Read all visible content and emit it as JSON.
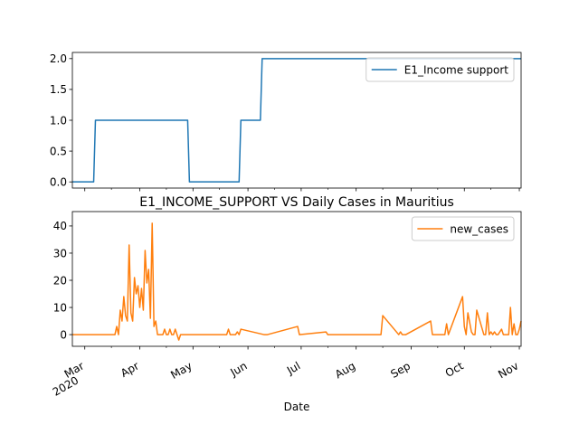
{
  "chart_data": [
    {
      "type": "line",
      "title": "",
      "xlabel": "",
      "ylabel": "",
      "ylim": [
        -0.1,
        2.1
      ],
      "yticks": [
        0.0,
        0.5,
        1.0,
        1.5,
        2.0
      ],
      "ytick_labels": [
        "0.0",
        "0.5",
        "1.0",
        "1.5",
        "2.0"
      ],
      "xlim": [
        "2020-02-23",
        "2020-11-02"
      ],
      "shared_x": true,
      "legend_position": "upper-right",
      "series": [
        {
          "name": "E1_Income support",
          "color": "#1f77b4",
          "x": [
            "2020-02-23",
            "2020-03-06",
            "2020-03-07",
            "2020-04-28",
            "2020-04-29",
            "2020-05-27",
            "2020-05-28",
            "2020-06-08",
            "2020-06-09",
            "2020-11-02"
          ],
          "y": [
            0,
            0,
            1,
            1,
            0,
            0,
            1,
            1,
            2,
            2
          ]
        }
      ]
    },
    {
      "type": "line",
      "title": "E1_INCOME_SUPPORT VS Daily Cases in Mauritius",
      "xlabel": "Date",
      "ylabel": "",
      "ylim": [
        -4.3,
        45.3
      ],
      "yticks": [
        0,
        10,
        20,
        30,
        40
      ],
      "ytick_labels": [
        "0",
        "10",
        "20",
        "30",
        "40"
      ],
      "xlim": [
        "2020-02-23",
        "2020-11-02"
      ],
      "xticks": [
        {
          "date": "2020-03-01",
          "label": "Mar",
          "sublabel": "2020"
        },
        {
          "date": "2020-04-01",
          "label": "Apr",
          "sublabel": ""
        },
        {
          "date": "2020-05-01",
          "label": "May",
          "sublabel": ""
        },
        {
          "date": "2020-06-01",
          "label": "Jun",
          "sublabel": ""
        },
        {
          "date": "2020-07-01",
          "label": "Jul",
          "sublabel": ""
        },
        {
          "date": "2020-08-01",
          "label": "Aug",
          "sublabel": ""
        },
        {
          "date": "2020-09-01",
          "label": "Sep",
          "sublabel": ""
        },
        {
          "date": "2020-10-01",
          "label": "Oct",
          "sublabel": ""
        },
        {
          "date": "2020-11-01",
          "label": "Nov",
          "sublabel": ""
        }
      ],
      "legend_position": "upper-right",
      "series": [
        {
          "name": "new_cases",
          "color": "#ff7f0e",
          "x": [
            "2020-02-23",
            "2020-03-18",
            "2020-03-19",
            "2020-03-20",
            "2020-03-21",
            "2020-03-22",
            "2020-03-23",
            "2020-03-24",
            "2020-03-25",
            "2020-03-26",
            "2020-03-27",
            "2020-03-28",
            "2020-03-29",
            "2020-03-30",
            "2020-03-31",
            "2020-04-01",
            "2020-04-02",
            "2020-04-03",
            "2020-04-04",
            "2020-04-05",
            "2020-04-06",
            "2020-04-07",
            "2020-04-08",
            "2020-04-09",
            "2020-04-10",
            "2020-04-11",
            "2020-04-12",
            "2020-04-13",
            "2020-04-14",
            "2020-04-15",
            "2020-04-16",
            "2020-04-17",
            "2020-04-18",
            "2020-04-19",
            "2020-04-20",
            "2020-04-21",
            "2020-04-22",
            "2020-04-23",
            "2020-04-24",
            "2020-04-25",
            "2020-04-26",
            "2020-04-27",
            "2020-04-28",
            "2020-04-29",
            "2020-05-20",
            "2020-05-21",
            "2020-05-22",
            "2020-05-23",
            "2020-05-24",
            "2020-05-25",
            "2020-05-26",
            "2020-05-27",
            "2020-05-28",
            "2020-06-10",
            "2020-06-11",
            "2020-06-12",
            "2020-06-29",
            "2020-06-30",
            "2020-07-15",
            "2020-07-16",
            "2020-07-17",
            "2020-08-14",
            "2020-08-15",
            "2020-08-16",
            "2020-08-25",
            "2020-08-26",
            "2020-08-27",
            "2020-08-28",
            "2020-08-29",
            "2020-09-12",
            "2020-09-13",
            "2020-09-14",
            "2020-09-20",
            "2020-09-21",
            "2020-09-22",
            "2020-09-30",
            "2020-10-01",
            "2020-10-02",
            "2020-10-03",
            "2020-10-05",
            "2020-10-06",
            "2020-10-07",
            "2020-10-08",
            "2020-10-12",
            "2020-10-13",
            "2020-10-14",
            "2020-10-15",
            "2020-10-16",
            "2020-10-17",
            "2020-10-18",
            "2020-10-19",
            "2020-10-20",
            "2020-10-22",
            "2020-10-23",
            "2020-10-24",
            "2020-10-25",
            "2020-10-26",
            "2020-10-27",
            "2020-10-28",
            "2020-10-29",
            "2020-10-30",
            "2020-10-31",
            "2020-11-01",
            "2020-11-02"
          ],
          "y": [
            0,
            0,
            3,
            0,
            9,
            5,
            14,
            7,
            5,
            33,
            8,
            5,
            21,
            15,
            18,
            10,
            17,
            9,
            31,
            19,
            24,
            6,
            41,
            3,
            5,
            0,
            0,
            0,
            0,
            2,
            0,
            0,
            2,
            0,
            0,
            2,
            0,
            -2,
            0,
            0,
            0,
            0,
            0,
            0,
            0,
            2,
            0,
            0,
            0,
            0,
            1,
            0,
            2,
            0,
            0,
            0,
            3,
            0,
            1,
            0,
            0,
            0,
            0,
            7,
            0,
            1,
            0,
            0,
            0,
            5,
            0,
            0,
            0,
            4,
            0,
            14,
            3,
            0,
            8,
            1,
            0,
            0,
            9,
            0,
            0,
            8,
            0,
            1,
            0,
            1,
            0,
            0,
            2,
            0,
            0,
            0,
            0,
            10,
            0,
            4,
            0,
            0,
            2,
            5
          ]
        }
      ]
    }
  ]
}
